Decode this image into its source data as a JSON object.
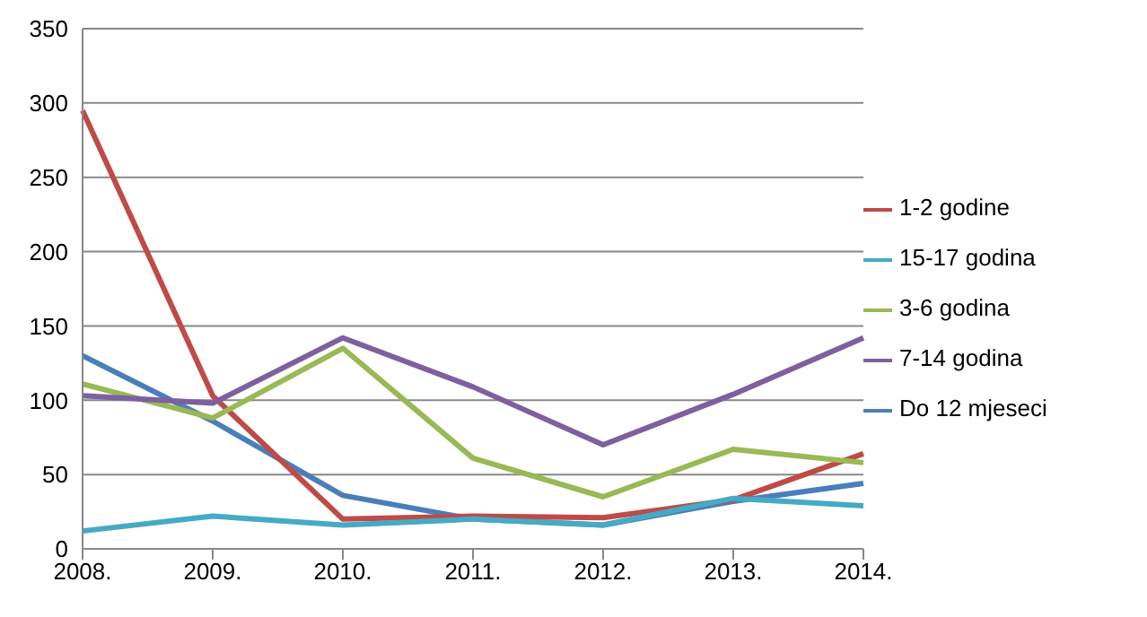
{
  "chart_data": {
    "type": "line",
    "categories": [
      "2008.",
      "2009.",
      "2010.",
      "2011.",
      "2012.",
      "2013.",
      "2014."
    ],
    "series": [
      {
        "name": "Do 12 mjeseci",
        "color": "#4a7ebb",
        "values": [
          130,
          86,
          36,
          20,
          16,
          32,
          44
        ]
      },
      {
        "name": "1-2 godine",
        "color": "#be4b48",
        "values": [
          295,
          103,
          20,
          22,
          21,
          33,
          64
        ]
      },
      {
        "name": "3-6 godina",
        "color": "#98b954",
        "values": [
          111,
          88,
          135,
          61,
          35,
          67,
          58
        ]
      },
      {
        "name": "7-14 godina",
        "color": "#7d60a0",
        "values": [
          103,
          98,
          142,
          109,
          70,
          104,
          142
        ]
      },
      {
        "name": "15-17 godina",
        "color": "#46aac5",
        "values": [
          12,
          22,
          16,
          20,
          16,
          34,
          29
        ]
      }
    ],
    "ylim": [
      0,
      350
    ],
    "yticks": [
      0,
      50,
      100,
      150,
      200,
      250,
      300,
      350
    ],
    "grid": "y",
    "legend": "right",
    "marker": "none",
    "line_style": "solid"
  }
}
